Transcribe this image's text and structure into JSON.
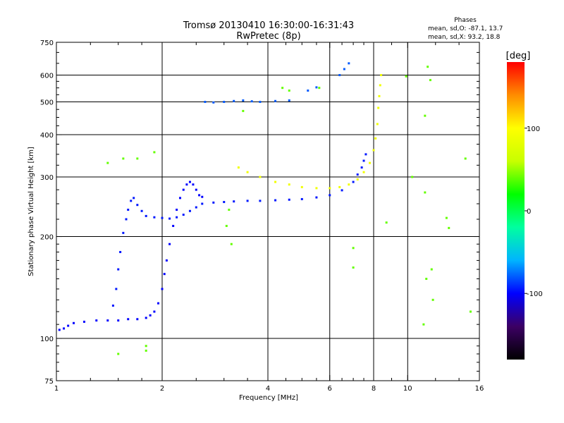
{
  "chart_data": {
    "type": "scatter",
    "title": "Tromsø 20130410 16:30:00-16:31:43",
    "subtitle": "RwPretec (8p)",
    "xlabel": "Frequency [MHz]",
    "ylabel": "Stationary phase Virtual Height [km]",
    "x_scale": "log",
    "y_scale": "log",
    "xlim": [
      1,
      16
    ],
    "ylim": [
      75,
      750
    ],
    "x_ticks": [
      1,
      2,
      4,
      6,
      8,
      10,
      16
    ],
    "x_tick_labels": [
      "1",
      "2",
      "4",
      "6",
      "8",
      "10",
      "16"
    ],
    "y_ticks": [
      75,
      100,
      200,
      300,
      400,
      500,
      600,
      750
    ],
    "y_tick_labels": [
      "75",
      "100",
      "200",
      "300",
      "400",
      "500",
      "600",
      "750"
    ],
    "x_minor_ticks": [
      1.25,
      1.5,
      1.75,
      2.5,
      3,
      3.5,
      4.5,
      5,
      5.5,
      6.5,
      7,
      7.5,
      9,
      12,
      14
    ],
    "y_minor_ticks": [
      80,
      85,
      90,
      95,
      110,
      120,
      130,
      140,
      150,
      160,
      170,
      180,
      190,
      225,
      250,
      275,
      325,
      350,
      375,
      425,
      450,
      475,
      525,
      550,
      575,
      650,
      700
    ],
    "grid": true,
    "grid_x": [
      2,
      4,
      6,
      8,
      10
    ],
    "grid_y": [
      100,
      200,
      300,
      400,
      500,
      600
    ],
    "phases_box": {
      "title": "Phases",
      "line1": "mean, sd,O: -87.1, 13.7",
      "line2": "mean, sd,X:  93.2, 18.8"
    },
    "colorbar": {
      "label": "[deg]",
      "min": -180,
      "max": 180,
      "ticks": [
        100,
        0,
        -100
      ],
      "tick_labels": [
        "100",
        "0",
        "-100"
      ],
      "colors": [
        "#000000",
        "#3c0064",
        "#0000ff",
        "#00b4ff",
        "#00ffa0",
        "#00ff00",
        "#c8ff00",
        "#ffff00",
        "#ff8c00",
        "#ff0000"
      ]
    },
    "series": [
      {
        "id": "o-low-trace",
        "phase": -100,
        "points": [
          [
            1.02,
            106
          ],
          [
            1.05,
            107
          ],
          [
            1.08,
            109
          ],
          [
            1.12,
            111
          ],
          [
            1.2,
            112
          ],
          [
            1.3,
            113
          ],
          [
            1.4,
            113
          ],
          [
            1.5,
            113
          ],
          [
            1.6,
            114
          ],
          [
            1.7,
            114
          ],
          [
            1.8,
            115
          ],
          [
            1.85,
            117
          ],
          [
            1.9,
            120
          ],
          [
            1.95,
            127
          ],
          [
            2.0,
            140
          ],
          [
            2.03,
            155
          ],
          [
            2.06,
            170
          ],
          [
            2.1,
            190
          ],
          [
            2.15,
            215
          ],
          [
            2.2,
            240
          ],
          [
            2.25,
            260
          ],
          [
            2.3,
            275
          ],
          [
            2.35,
            285
          ],
          [
            2.4,
            290
          ],
          [
            2.45,
            285
          ],
          [
            2.5,
            275
          ],
          [
            2.55,
            265
          ],
          [
            2.6,
            262
          ]
        ]
      },
      {
        "id": "o-upper-trace",
        "phase": -95,
        "points": [
          [
            1.45,
            125
          ],
          [
            1.48,
            140
          ],
          [
            1.5,
            160
          ],
          [
            1.52,
            180
          ],
          [
            1.55,
            205
          ],
          [
            1.58,
            225
          ],
          [
            1.6,
            240
          ],
          [
            1.63,
            255
          ],
          [
            1.66,
            260
          ],
          [
            1.7,
            248
          ],
          [
            1.75,
            238
          ],
          [
            1.8,
            230
          ],
          [
            1.9,
            228
          ],
          [
            2.0,
            227
          ],
          [
            2.1,
            226
          ],
          [
            2.2,
            228
          ],
          [
            2.3,
            232
          ],
          [
            2.4,
            238
          ],
          [
            2.5,
            244
          ],
          [
            2.6,
            250
          ],
          [
            2.8,
            252
          ],
          [
            3.0,
            253
          ],
          [
            3.2,
            254
          ],
          [
            3.5,
            255
          ],
          [
            3.8,
            255
          ],
          [
            4.2,
            256
          ],
          [
            4.6,
            257
          ],
          [
            5.0,
            258
          ],
          [
            5.5,
            261
          ],
          [
            6.0,
            265
          ],
          [
            6.5,
            274
          ],
          [
            7.0,
            290
          ],
          [
            7.2,
            305
          ],
          [
            7.4,
            320
          ],
          [
            7.5,
            335
          ],
          [
            7.6,
            350
          ]
        ]
      },
      {
        "id": "o-f2-band",
        "phase": -80,
        "points": [
          [
            2.65,
            500
          ],
          [
            2.8,
            498
          ],
          [
            3.0,
            500
          ],
          [
            3.2,
            503
          ],
          [
            3.4,
            505
          ],
          [
            3.6,
            502
          ],
          [
            3.8,
            500
          ],
          [
            4.2,
            503
          ],
          [
            4.6,
            505
          ],
          [
            5.2,
            540
          ],
          [
            5.5,
            552
          ],
          [
            6.4,
            600
          ],
          [
            6.6,
            625
          ],
          [
            6.8,
            650
          ]
        ]
      },
      {
        "id": "x-trace",
        "phase": 90,
        "points": [
          [
            3.3,
            320
          ],
          [
            3.5,
            310
          ],
          [
            3.8,
            300
          ],
          [
            4.2,
            290
          ],
          [
            4.6,
            285
          ],
          [
            5.0,
            280
          ],
          [
            5.5,
            278
          ],
          [
            6.0,
            278
          ],
          [
            6.4,
            280
          ],
          [
            6.8,
            285
          ],
          [
            7.2,
            295
          ],
          [
            7.5,
            310
          ],
          [
            7.8,
            330
          ],
          [
            8.0,
            360
          ],
          [
            8.1,
            390
          ],
          [
            8.2,
            430
          ],
          [
            8.25,
            480
          ],
          [
            8.3,
            520
          ],
          [
            8.35,
            560
          ],
          [
            8.4,
            600
          ]
        ]
      },
      {
        "id": "scatter-misc",
        "phase": 40,
        "points": [
          [
            1.4,
            330
          ],
          [
            1.55,
            340
          ],
          [
            1.7,
            340
          ],
          [
            1.9,
            355
          ],
          [
            1.5,
            90
          ],
          [
            1.8,
            95
          ],
          [
            1.8,
            92
          ],
          [
            3.1,
            240
          ],
          [
            3.05,
            215
          ],
          [
            3.15,
            190
          ],
          [
            3.4,
            470
          ],
          [
            4.4,
            550
          ],
          [
            4.6,
            540
          ],
          [
            5.6,
            550
          ],
          [
            7.0,
            185
          ],
          [
            7.0,
            162
          ],
          [
            8.7,
            220
          ],
          [
            9.9,
            595
          ],
          [
            10.3,
            300
          ],
          [
            11.2,
            270
          ],
          [
            11.4,
            635
          ],
          [
            11.6,
            580
          ],
          [
            11.2,
            455
          ],
          [
            11.3,
            150
          ],
          [
            11.1,
            110
          ],
          [
            11.7,
            160
          ],
          [
            11.8,
            130
          ],
          [
            12.9,
            227
          ],
          [
            13.1,
            212
          ],
          [
            14.6,
            340
          ],
          [
            15.1,
            120
          ]
        ]
      }
    ]
  }
}
